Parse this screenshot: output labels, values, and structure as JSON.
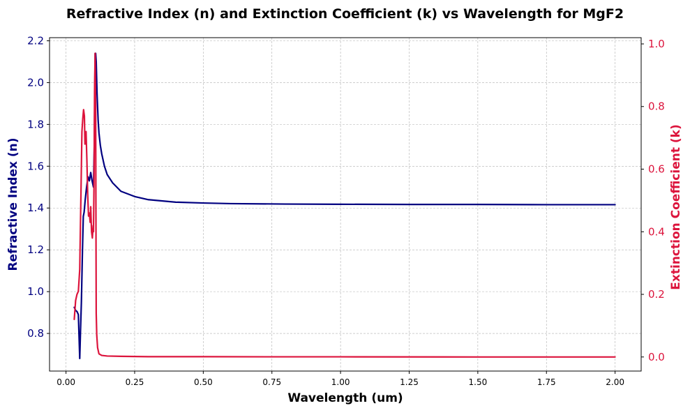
{
  "chart_data": {
    "type": "line",
    "title": "Refractive Index (n) and Extinction Coefficient (k) vs Wavelength for MgF2",
    "xlabel": "Wavelength (um)",
    "ylabel_left": "Refractive Index (n)",
    "ylabel_right": "Extinction Coefficient (k)",
    "xlim": [
      -0.06,
      2.095
    ],
    "ylim_left": [
      0.62,
      2.215
    ],
    "ylim_right": [
      -0.045,
      1.02
    ],
    "x_ticks": [
      0.0,
      0.25,
      0.5,
      0.75,
      1.0,
      1.25,
      1.5,
      1.75,
      2.0
    ],
    "x_tick_labels": [
      "0.00",
      "0.25",
      "0.50",
      "0.75",
      "1.00",
      "1.25",
      "1.50",
      "1.75",
      "2.00"
    ],
    "y_left_ticks": [
      0.8,
      1.0,
      1.2,
      1.4,
      1.6,
      1.8,
      2.0,
      2.2
    ],
    "y_left_tick_labels": [
      "0.8",
      "1.0",
      "1.2",
      "1.4",
      "1.6",
      "1.8",
      "2.0",
      "2.2"
    ],
    "y_right_ticks": [
      0.0,
      0.2,
      0.4,
      0.6,
      0.8,
      1.0
    ],
    "y_right_tick_labels": [
      "0.0",
      "0.2",
      "0.4",
      "0.6",
      "0.8",
      "1.0"
    ],
    "grid": true,
    "colors": {
      "n": "#000080",
      "k": "#dc143c",
      "left_axis": "#000080",
      "right_axis": "#dc143c"
    },
    "series": [
      {
        "axis": "left",
        "color": "#000080",
        "x": [
          0.03,
          0.035,
          0.04,
          0.045,
          0.05,
          0.053,
          0.056,
          0.06,
          0.063,
          0.066,
          0.07,
          0.075,
          0.08,
          0.085,
          0.09,
          0.095,
          0.1,
          0.103,
          0.106,
          0.108,
          0.11,
          0.113,
          0.117,
          0.12,
          0.125,
          0.13,
          0.14,
          0.15,
          0.17,
          0.2,
          0.25,
          0.3,
          0.4,
          0.5,
          0.6,
          0.8,
          1.0,
          1.25,
          1.5,
          1.75,
          2.0
        ],
        "y": [
          0.925,
          0.91,
          0.905,
          0.89,
          0.68,
          0.82,
          0.95,
          1.2,
          1.36,
          1.38,
          1.44,
          1.5,
          1.55,
          1.53,
          1.57,
          1.53,
          1.5,
          1.7,
          2.14,
          2.14,
          2.1,
          1.95,
          1.82,
          1.76,
          1.7,
          1.66,
          1.6,
          1.56,
          1.52,
          1.48,
          1.455,
          1.44,
          1.428,
          1.424,
          1.421,
          1.419,
          1.418,
          1.417,
          1.417,
          1.416,
          1.416
        ]
      },
      {
        "axis": "right",
        "color": "#dc143c",
        "x": [
          0.03,
          0.035,
          0.04,
          0.045,
          0.05,
          0.055,
          0.058,
          0.061,
          0.064,
          0.067,
          0.069,
          0.071,
          0.073,
          0.076,
          0.079,
          0.082,
          0.085,
          0.088,
          0.09,
          0.093,
          0.096,
          0.099,
          0.1,
          0.102,
          0.104,
          0.106,
          0.108,
          0.11,
          0.112,
          0.115,
          0.12,
          0.13,
          0.15,
          0.2,
          0.3,
          0.5,
          0.75,
          1.0,
          1.5,
          2.0
        ],
        "y": [
          0.12,
          0.18,
          0.2,
          0.21,
          0.28,
          0.55,
          0.72,
          0.76,
          0.79,
          0.77,
          0.68,
          0.7,
          0.72,
          0.63,
          0.52,
          0.45,
          0.46,
          0.43,
          0.48,
          0.4,
          0.38,
          0.42,
          0.4,
          0.55,
          0.85,
          0.97,
          0.8,
          0.14,
          0.07,
          0.03,
          0.01,
          0.005,
          0.003,
          0.002,
          0.001,
          0.001,
          0.0005,
          0.0005,
          0.0,
          0.0
        ]
      }
    ]
  }
}
